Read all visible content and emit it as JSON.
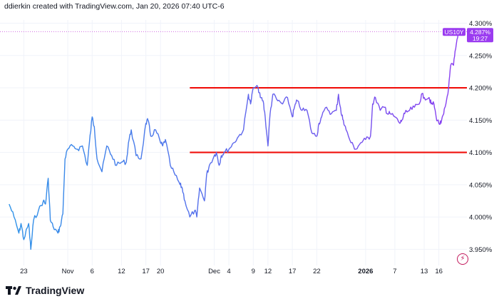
{
  "header": {
    "text": "ddierkin created with TradingView.com, Jan 20, 2026 07:40 UTC-6"
  },
  "brand": {
    "name": "TradingView"
  },
  "price_label": {
    "symbol": "US10Y",
    "value": "4.287%",
    "countdown": "19:27"
  },
  "icons": {
    "brand_logo": "tradingview-logo-icon",
    "lightning": "lightning-icon"
  },
  "colors": {
    "line_start": "#2f93e8",
    "line_end": "#8a3ff0",
    "resistance": "#f0100c",
    "support": "#f0100c",
    "current_price_line": "#cc55dd",
    "price_label_bg": "#9b3cf0"
  },
  "chart_data": {
    "type": "line",
    "title": "",
    "xlabel": "",
    "ylabel": "",
    "ylim": [
      3.925,
      4.305
    ],
    "y_ticks": [
      "3.950%",
      "4.000%",
      "4.050%",
      "4.100%",
      "4.150%",
      "4.200%",
      "4.250%",
      "4.300%"
    ],
    "y_tick_values": [
      3.95,
      4.0,
      4.05,
      4.1,
      4.15,
      4.2,
      4.25,
      4.3
    ],
    "x_ticks": [
      "23",
      "Nov",
      "6",
      "12",
      "17",
      "20",
      "Dec",
      "4",
      "9",
      "12",
      "17",
      "22",
      "2026",
      "7",
      "13",
      "16"
    ],
    "x_tick_dates": [
      "2025-10-23",
      "2025-11-01",
      "2025-11-06",
      "2025-11-12",
      "2025-11-17",
      "2025-11-20",
      "2025-12-01",
      "2025-12-04",
      "2025-12-09",
      "2025-12-12",
      "2025-12-17",
      "2025-12-22",
      "2026-01-01",
      "2026-01-07",
      "2026-01-13",
      "2026-01-16"
    ],
    "horizontal_lines": [
      {
        "y": 4.2,
        "from": "2025-11-26",
        "to": "2026-01-20"
      },
      {
        "y": 4.1,
        "from": "2025-11-26",
        "to": "2026-01-20"
      }
    ],
    "current_value": 4.287,
    "series": [
      {
        "name": "US10Y",
        "points": [
          [
            "2025-10-20",
            4.02
          ],
          [
            "2025-10-21",
            4.0
          ],
          [
            "2025-10-22",
            3.975
          ],
          [
            "2025-10-22",
            3.99
          ],
          [
            "2025-10-23",
            3.965
          ],
          [
            "2025-10-24",
            3.99
          ],
          [
            "2025-10-24",
            3.95
          ],
          [
            "2025-10-25",
            3.995
          ],
          [
            "2025-10-26",
            4.01
          ],
          [
            "2025-10-27",
            4.025
          ],
          [
            "2025-10-27",
            4.02
          ],
          [
            "2025-10-28",
            4.06
          ],
          [
            "2025-10-28",
            3.995
          ],
          [
            "2025-10-29",
            3.985
          ],
          [
            "2025-10-30",
            3.975
          ],
          [
            "2025-10-30",
            3.985
          ],
          [
            "2025-10-31",
            4.005
          ],
          [
            "2025-10-31",
            4.09
          ],
          [
            "2025-11-01",
            4.105
          ],
          [
            "2025-11-02",
            4.11
          ],
          [
            "2025-11-03",
            4.105
          ],
          [
            "2025-11-04",
            4.11
          ],
          [
            "2025-11-05",
            4.08
          ],
          [
            "2025-11-05",
            4.115
          ],
          [
            "2025-11-06",
            4.155
          ],
          [
            "2025-11-06",
            4.14
          ],
          [
            "2025-11-07",
            4.09
          ],
          [
            "2025-11-08",
            4.07
          ],
          [
            "2025-11-09",
            4.11
          ],
          [
            "2025-11-10",
            4.095
          ],
          [
            "2025-11-11",
            4.08
          ],
          [
            "2025-11-12",
            4.085
          ],
          [
            "2025-11-13",
            4.085
          ],
          [
            "2025-11-13",
            4.115
          ],
          [
            "2025-11-14",
            4.135
          ],
          [
            "2025-11-15",
            4.095
          ],
          [
            "2025-11-16",
            4.09
          ],
          [
            "2025-11-17",
            4.145
          ],
          [
            "2025-11-17",
            4.15
          ],
          [
            "2025-11-18",
            4.125
          ],
          [
            "2025-11-19",
            4.135
          ],
          [
            "2025-11-20",
            4.115
          ],
          [
            "2025-11-20",
            4.11
          ],
          [
            "2025-11-21",
            4.12
          ],
          [
            "2025-11-22",
            4.08
          ],
          [
            "2025-11-23",
            4.065
          ],
          [
            "2025-11-24",
            4.05
          ],
          [
            "2025-11-24",
            4.045
          ],
          [
            "2025-11-25",
            4.025
          ],
          [
            "2025-11-26",
            4.0
          ],
          [
            "2025-11-27",
            4.01
          ],
          [
            "2025-11-27",
            4.0
          ],
          [
            "2025-11-28",
            4.045
          ],
          [
            "2025-11-29",
            4.025
          ],
          [
            "2025-11-29",
            4.065
          ],
          [
            "2025-11-30",
            4.08
          ],
          [
            "2025-12-01",
            4.095
          ],
          [
            "2025-12-01",
            4.1
          ],
          [
            "2025-12-02",
            4.08
          ],
          [
            "2025-12-02",
            4.095
          ],
          [
            "2025-12-03",
            4.1
          ],
          [
            "2025-12-04",
            4.105
          ],
          [
            "2025-12-05",
            4.115
          ],
          [
            "2025-12-06",
            4.125
          ],
          [
            "2025-12-07",
            4.135
          ],
          [
            "2025-12-08",
            4.19
          ],
          [
            "2025-12-08",
            4.175
          ],
          [
            "2025-12-09",
            4.2
          ],
          [
            "2025-12-10",
            4.2
          ],
          [
            "2025-12-10",
            4.185
          ],
          [
            "2025-12-11",
            4.18
          ],
          [
            "2025-12-11",
            4.155
          ],
          [
            "2025-12-12",
            4.11
          ],
          [
            "2025-12-12",
            4.16
          ],
          [
            "2025-12-13",
            4.19
          ],
          [
            "2025-12-14",
            4.18
          ],
          [
            "2025-12-15",
            4.175
          ],
          [
            "2025-12-16",
            4.185
          ],
          [
            "2025-12-17",
            4.155
          ],
          [
            "2025-12-17",
            4.17
          ],
          [
            "2025-12-18",
            4.18
          ],
          [
            "2025-12-19",
            4.165
          ],
          [
            "2025-12-20",
            4.165
          ],
          [
            "2025-12-21",
            4.13
          ],
          [
            "2025-12-22",
            4.125
          ],
          [
            "2025-12-22",
            4.145
          ],
          [
            "2025-12-23",
            4.155
          ],
          [
            "2025-12-24",
            4.17
          ],
          [
            "2025-12-25",
            4.16
          ],
          [
            "2025-12-26",
            4.165
          ],
          [
            "2025-12-26",
            4.19
          ],
          [
            "2025-12-27",
            4.16
          ],
          [
            "2025-12-27",
            4.15
          ],
          [
            "2025-12-28",
            4.135
          ],
          [
            "2025-12-29",
            4.115
          ],
          [
            "2025-12-30",
            4.105
          ],
          [
            "2025-12-31",
            4.115
          ],
          [
            "2026-01-01",
            4.12
          ],
          [
            "2026-01-02",
            4.125
          ],
          [
            "2026-01-02",
            4.175
          ],
          [
            "2026-01-03",
            4.185
          ],
          [
            "2026-01-04",
            4.165
          ],
          [
            "2026-01-05",
            4.17
          ],
          [
            "2026-01-05",
            4.16
          ],
          [
            "2026-01-06",
            4.16
          ],
          [
            "2026-01-07",
            4.155
          ],
          [
            "2026-01-08",
            4.145
          ],
          [
            "2026-01-08",
            4.15
          ],
          [
            "2026-01-09",
            4.16
          ],
          [
            "2026-01-10",
            4.165
          ],
          [
            "2026-01-11",
            4.17
          ],
          [
            "2026-01-12",
            4.175
          ],
          [
            "2026-01-12",
            4.19
          ],
          [
            "2026-01-13",
            4.185
          ],
          [
            "2026-01-14",
            4.185
          ],
          [
            "2026-01-14",
            4.175
          ],
          [
            "2026-01-15",
            4.175
          ],
          [
            "2026-01-15",
            4.155
          ],
          [
            "2026-01-16",
            4.145
          ],
          [
            "2026-01-16",
            4.145
          ],
          [
            "2026-01-17",
            4.16
          ],
          [
            "2026-01-17",
            4.175
          ],
          [
            "2026-01-18",
            4.2
          ],
          [
            "2026-01-18",
            4.235
          ],
          [
            "2026-01-19",
            4.235
          ],
          [
            "2026-01-19",
            4.26
          ],
          [
            "2026-01-20",
            4.287
          ]
        ]
      }
    ]
  }
}
